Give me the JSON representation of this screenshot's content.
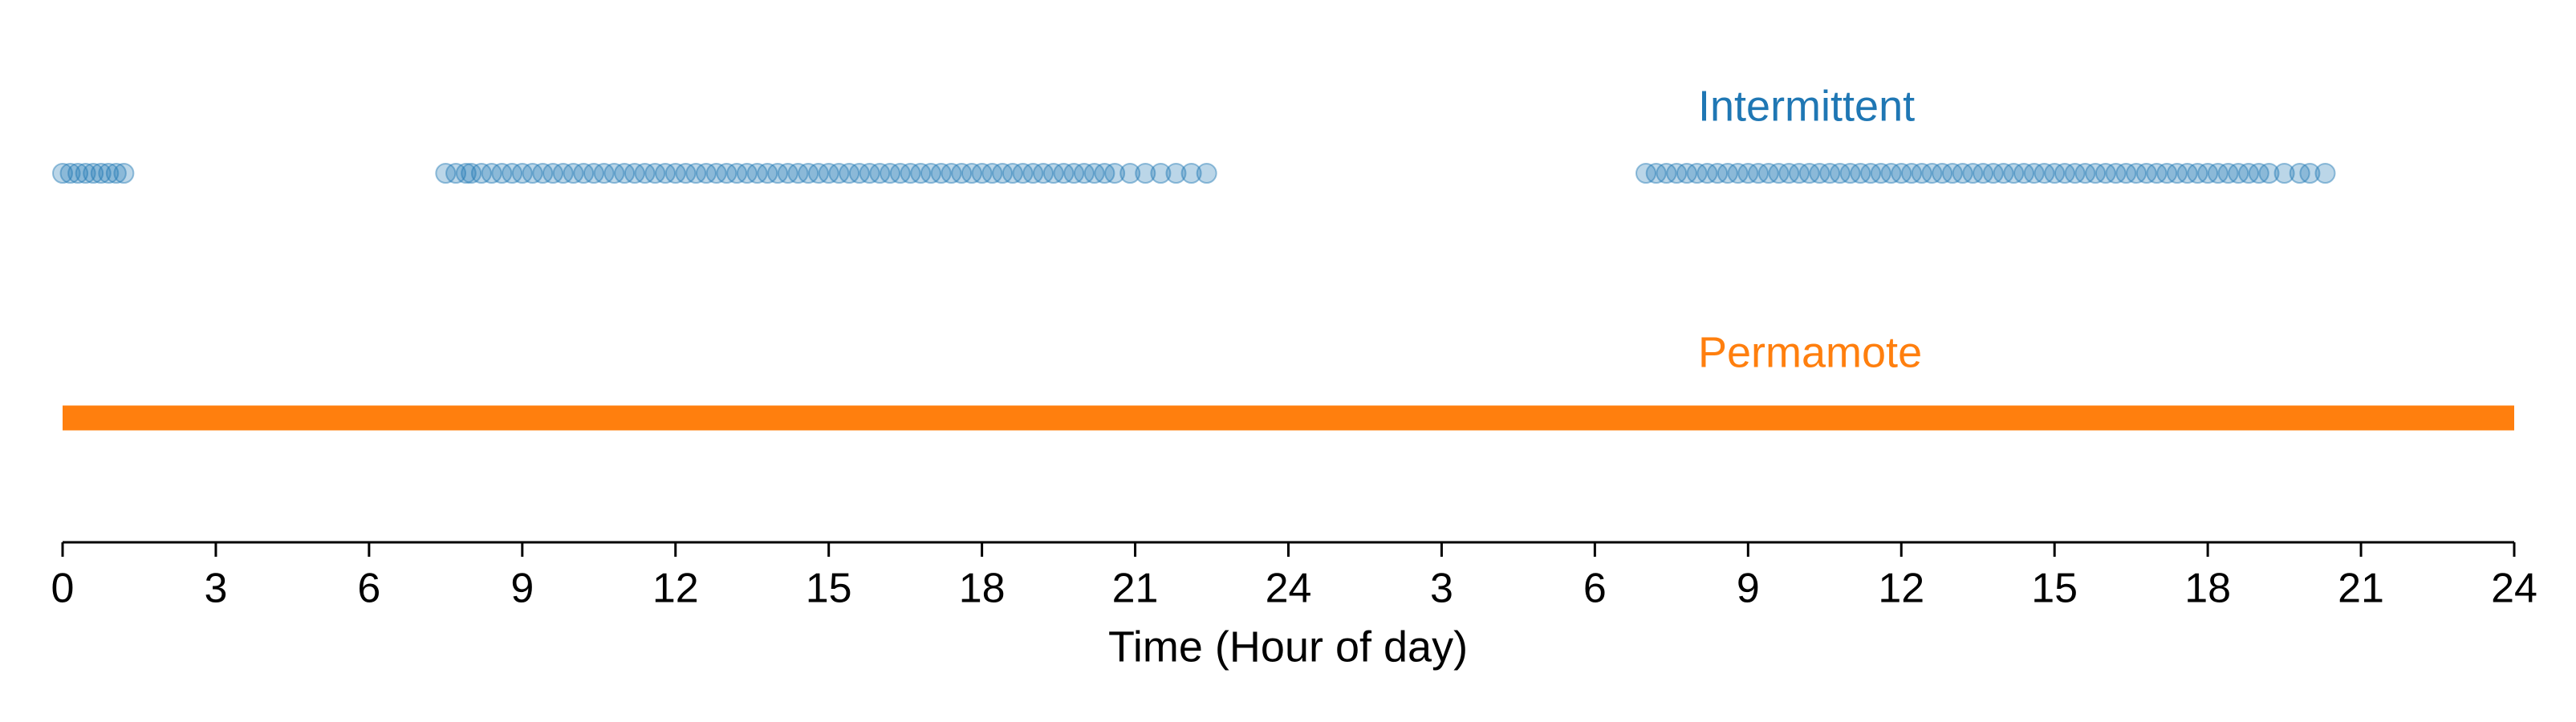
{
  "chart_data": {
    "type": "scatter",
    "xlabel": "Time (Hour of day)",
    "xlim": [
      0,
      48
    ],
    "xticks": [
      0,
      3,
      6,
      9,
      12,
      15,
      18,
      21,
      24,
      {
        "value": 27,
        "label": "3"
      },
      {
        "value": 30,
        "label": "6"
      },
      {
        "value": 33,
        "label": "9"
      },
      {
        "value": 36,
        "label": "12"
      },
      {
        "value": 39,
        "label": "15"
      },
      {
        "value": 42,
        "label": "18"
      },
      {
        "value": 45,
        "label": "21"
      },
      {
        "value": 48,
        "label": "24"
      }
    ],
    "series": [
      {
        "name": "Intermittent",
        "color": "#1f77b4",
        "style": "points",
        "x": [
          0,
          0.15,
          0.3,
          0.45,
          0.6,
          0.75,
          0.9,
          1.05,
          1.2,
          7.5,
          7.7,
          7.9,
          8,
          8.2,
          8.4,
          8.6,
          8.8,
          9,
          9.2,
          9.4,
          9.6,
          9.8,
          10,
          10.2,
          10.4,
          10.6,
          10.8,
          11,
          11.2,
          11.4,
          11.6,
          11.8,
          12,
          12.2,
          12.4,
          12.6,
          12.8,
          13,
          13.2,
          13.4,
          13.6,
          13.8,
          14,
          14.2,
          14.4,
          14.6,
          14.8,
          15,
          15.2,
          15.4,
          15.6,
          15.8,
          16,
          16.2,
          16.4,
          16.6,
          16.8,
          17,
          17.2,
          17.4,
          17.6,
          17.8,
          18,
          18.2,
          18.4,
          18.6,
          18.8,
          19,
          19.2,
          19.4,
          19.6,
          19.8,
          20,
          20.2,
          20.4,
          20.6,
          20.9,
          21.2,
          21.5,
          21.8,
          22.1,
          22.4,
          31,
          31.2,
          31.4,
          31.6,
          31.8,
          32,
          32.2,
          32.4,
          32.6,
          32.8,
          33,
          33.2,
          33.4,
          33.6,
          33.8,
          34,
          34.2,
          34.4,
          34.6,
          34.8,
          35,
          35.2,
          35.4,
          35.6,
          35.8,
          36,
          36.2,
          36.4,
          36.6,
          36.8,
          37,
          37.2,
          37.4,
          37.6,
          37.8,
          38,
          38.2,
          38.4,
          38.6,
          38.8,
          39,
          39.2,
          39.4,
          39.6,
          39.8,
          40,
          40.2,
          40.4,
          40.6,
          40.8,
          41,
          41.2,
          41.4,
          41.6,
          41.8,
          42,
          42.2,
          42.4,
          42.6,
          42.8,
          43,
          43.2,
          43.5,
          43.8,
          44,
          44.3
        ]
      },
      {
        "name": "Permamote",
        "color": "#ff7f0e",
        "style": "span",
        "x": [
          0,
          48
        ]
      }
    ]
  }
}
